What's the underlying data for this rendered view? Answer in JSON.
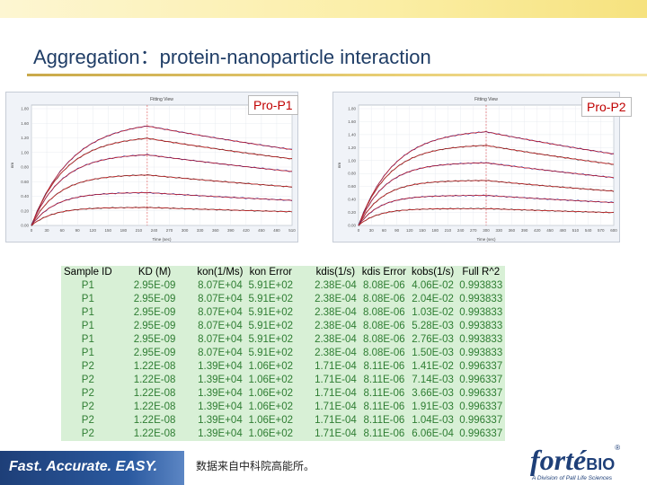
{
  "slide": {
    "title": "Aggregation：protein-nanoparticle interaction",
    "source_note": "数据来自中科院高能所。",
    "tagline": "Fast. Accurate. EASY.",
    "logo": {
      "main": "forté",
      "suffix": "BIO",
      "registered": "®",
      "sub": "A Division of Pall Life Sciences"
    }
  },
  "panels": [
    {
      "label": "Pro-P1",
      "header": "Fitting View",
      "xlabel": "Time (sec)",
      "x_ticks": [
        "0",
        "30",
        "60",
        "90",
        "120",
        "150",
        "180",
        "210",
        "240",
        "270",
        "300",
        "330",
        "360",
        "390",
        "420",
        "450",
        "480",
        "510"
      ],
      "y_ticks": [
        "1.80",
        "1.60",
        "1.20",
        "1.00",
        "0.80",
        "0.60",
        "0.40",
        "0.20",
        "0.00"
      ]
    },
    {
      "label": "Pro-P2",
      "header": "Fitting View",
      "xlabel": "Time (sec)",
      "x_ticks": [
        "0",
        "30",
        "60",
        "90",
        "120",
        "150",
        "180",
        "210",
        "240",
        "270",
        "300",
        "330",
        "360",
        "390",
        "420",
        "450",
        "480",
        "510",
        "540",
        "570",
        "600"
      ],
      "y_ticks": [
        "1.80",
        "1.60",
        "1.40",
        "1.20",
        "1.00",
        "0.80",
        "0.60",
        "0.40",
        "0.20",
        "0.00"
      ]
    }
  ],
  "table": {
    "headers": [
      "Sample ID",
      "KD (M)",
      "kon(1/Ms)",
      "kon Error",
      "kdis(1/s)",
      "kdis Error",
      "kobs(1/s)",
      "Full  R^2"
    ],
    "rows": [
      [
        "P1",
        "2.95E-09",
        "8.07E+04",
        "5.91E+02",
        "2.38E-04",
        "8.08E-06",
        "4.06E-02",
        "0.993833"
      ],
      [
        "P1",
        "2.95E-09",
        "8.07E+04",
        "5.91E+02",
        "2.38E-04",
        "8.08E-06",
        "2.04E-02",
        "0.993833"
      ],
      [
        "P1",
        "2.95E-09",
        "8.07E+04",
        "5.91E+02",
        "2.38E-04",
        "8.08E-06",
        "1.03E-02",
        "0.993833"
      ],
      [
        "P1",
        "2.95E-09",
        "8.07E+04",
        "5.91E+02",
        "2.38E-04",
        "8.08E-06",
        "5.28E-03",
        "0.993833"
      ],
      [
        "P1",
        "2.95E-09",
        "8.07E+04",
        "5.91E+02",
        "2.38E-04",
        "8.08E-06",
        "2.76E-03",
        "0.993833"
      ],
      [
        "P1",
        "2.95E-09",
        "8.07E+04",
        "5.91E+02",
        "2.38E-04",
        "8.08E-06",
        "1.50E-03",
        "0.993833"
      ],
      [
        "P2",
        "1.22E-08",
        "1.39E+04",
        "1.06E+02",
        "1.71E-04",
        "8.11E-06",
        "1.41E-02",
        "0.996337"
      ],
      [
        "P2",
        "1.22E-08",
        "1.39E+04",
        "1.06E+02",
        "1.71E-04",
        "8.11E-06",
        "7.14E-03",
        "0.996337"
      ],
      [
        "P2",
        "1.22E-08",
        "1.39E+04",
        "1.06E+02",
        "1.71E-04",
        "8.11E-06",
        "3.66E-03",
        "0.996337"
      ],
      [
        "P2",
        "1.22E-08",
        "1.39E+04",
        "1.06E+02",
        "1.71E-04",
        "8.11E-06",
        "1.91E-03",
        "0.996337"
      ],
      [
        "P2",
        "1.22E-08",
        "1.39E+04",
        "1.06E+02",
        "1.71E-04",
        "8.11E-06",
        "1.04E-03",
        "0.996337"
      ],
      [
        "P2",
        "1.22E-08",
        "1.39E+04",
        "1.06E+02",
        "1.71E-04",
        "8.11E-06",
        "6.06E-04",
        "0.996337"
      ]
    ]
  },
  "chart_data": [
    {
      "type": "line",
      "title": "Fitting View",
      "xlabel": "Time (sec)",
      "ylabel": "nm",
      "xlim": [
        0,
        540
      ],
      "ylim": [
        0,
        2.0
      ],
      "dissociation_start": 240,
      "series": [
        {
          "plateau": 1.75
        },
        {
          "plateau": 1.5
        },
        {
          "plateau": 1.2
        },
        {
          "plateau": 0.85
        },
        {
          "plateau": 0.55
        },
        {
          "plateau": 0.3
        }
      ]
    },
    {
      "type": "line",
      "title": "Fitting View",
      "xlabel": "Time (sec)",
      "ylabel": "nm",
      "xlim": [
        0,
        600
      ],
      "ylim": [
        0,
        2.0
      ],
      "dissociation_start": 300,
      "series": [
        {
          "plateau": 1.6
        },
        {
          "plateau": 1.35
        },
        {
          "plateau": 1.05
        },
        {
          "plateau": 0.75
        },
        {
          "plateau": 0.5
        },
        {
          "plateau": 0.28
        }
      ]
    }
  ],
  "colors": {
    "fit": "#d62728",
    "panel_label": "#c00000",
    "table_text": "#2e7d32",
    "table_bg": "#d8f0d6",
    "brand_blue": "#1e3f78"
  }
}
